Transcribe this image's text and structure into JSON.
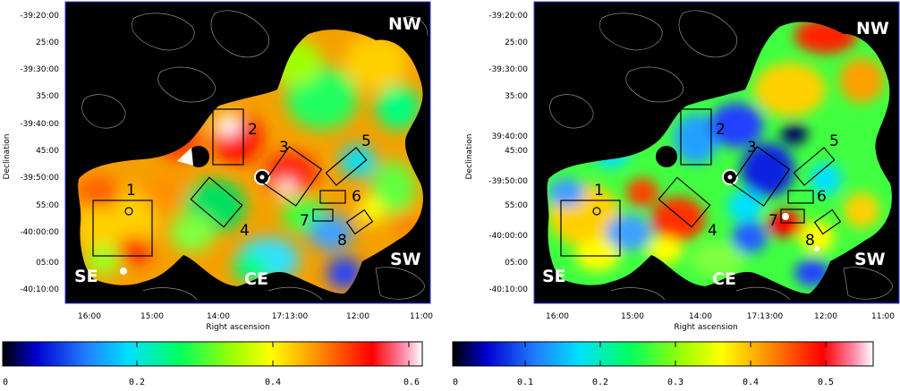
{
  "panels": [
    {
      "dec_ticks": [
        "-39:20:00",
        "25:00",
        "-39:30:00",
        "35:00",
        "-39:40:00",
        "45:00",
        "-39:50:00",
        "55:00",
        "-40:00:00",
        "05:00",
        "-40:10:00"
      ],
      "ra_ticks": [
        "16:00",
        "15:00",
        "14:00",
        "17:13:00",
        "12:00",
        "11:00"
      ],
      "xlabel": "Right ascension",
      "ylabel": "Declination",
      "quadrants": [
        "NW",
        "SE",
        "CE",
        "SW"
      ],
      "regions": [
        "1",
        "2",
        "3",
        "4",
        "5",
        "6",
        "7",
        "8"
      ],
      "colorbar_ticks": [
        "0",
        "0.2",
        "0.4",
        "0.6"
      ]
    },
    {
      "dec_ticks": [
        "-39:20:00",
        "25:00",
        "-39:30:00",
        "35:00",
        "39:40:00",
        "45:00",
        "-39:50:00",
        "55:00",
        "-40:00:00",
        "05:00",
        "-40:10:00"
      ],
      "ra_ticks": [
        "16:00",
        "15:00",
        "14:00",
        "17:13:00",
        "12:00",
        "11:00"
      ],
      "xlabel": "Right ascension",
      "ylabel": "Declination",
      "quadrants": [
        "NW",
        "SE",
        "CE",
        "SW"
      ],
      "regions": [
        "1",
        "2",
        "3",
        "4",
        "5",
        "6",
        "7",
        "8"
      ],
      "colorbar_ticks": [
        "0",
        "0.1",
        "0.2",
        "0.3",
        "0.4",
        "0.5"
      ]
    }
  ],
  "colors": {
    "frame": "#3a3aff",
    "background": "#000000",
    "colormap": [
      "#000000",
      "#0000ff",
      "#00e0ff",
      "#00ff40",
      "#ffff00",
      "#ff0000",
      "#ffffff"
    ]
  }
}
